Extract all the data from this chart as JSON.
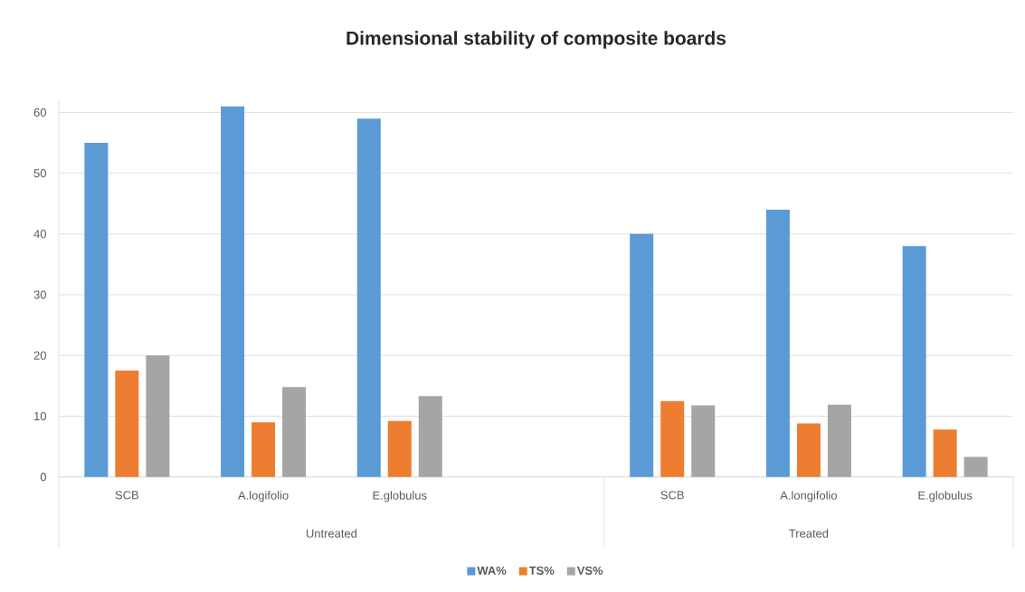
{
  "chart_data": {
    "type": "bar",
    "title": "Dimensional stability of composite boards",
    "categories": [
      "SCB",
      "A.logifolio",
      "E.globulus",
      null,
      "SCB",
      "A.longifolio",
      "E.globulus"
    ],
    "series": [
      {
        "name": "WA%",
        "color": "#5b9bd5",
        "values": [
          55,
          61,
          59,
          null,
          40,
          44,
          38
        ]
      },
      {
        "name": "TS%",
        "color": "#ed7d31",
        "values": [
          17.5,
          9.0,
          9.2,
          null,
          12.5,
          8.8,
          7.8
        ]
      },
      {
        "name": "VS%",
        "color": "#a5a5a5",
        "values": [
          20.0,
          14.8,
          13.3,
          null,
          11.8,
          11.9,
          3.3
        ]
      }
    ],
    "annotations": [
      "Untreated",
      "Treated"
    ],
    "ylim": [
      0,
      62
    ],
    "yticks": [
      0,
      10,
      20,
      30,
      40,
      50,
      60
    ],
    "grid": "y",
    "legend": "bottom"
  }
}
